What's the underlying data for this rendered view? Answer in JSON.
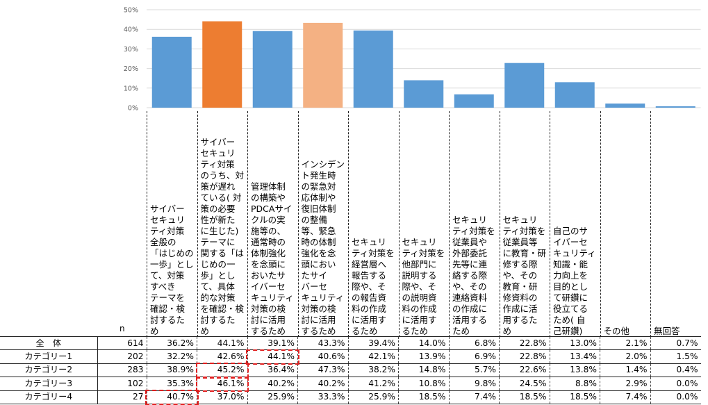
{
  "chart_data": {
    "type": "bar",
    "ylim": [
      0,
      50
    ],
    "ytick_labels": [
      "0%",
      "10%",
      "20%",
      "30%",
      "40%",
      "50%"
    ],
    "n_header": "n",
    "bar_colors": [
      "#5b9bd5",
      "#ed7d31",
      "#5b9bd5",
      "#f4b183",
      "#5b9bd5",
      "#5b9bd5",
      "#5b9bd5",
      "#5b9bd5",
      "#5b9bd5",
      "#5b9bd5",
      "#5b9bd5"
    ],
    "categories": [
      "サイバー\nセキュリ\nティ対策\n全般の\n「はじめの\n一歩」とし\nて、対策\nすべき\nテーマを\n確認・検\n討するた\nめ",
      "サイバー\nセキュリ\nティ対策\nのうち、対\n策が遅れ\nている( 対\n策の必要\n性が新た\nに生じた)\nテーマに\n関する「は\nじめの一\n歩」とし\nて、具体\n的な対策\nを確認・検\n討するた\nめ",
      "管理体制\nの構築や\nPDCAサイ\nクルの実\n施等の、\n通常時の\n体制強化\nを念頭に\nおいたサ\nイバーセ\nキュリティ\n対策の検\n討に活用\nするため",
      "インシデン\nト発生時\nの緊急対\n応体制や\n復旧体制\nの整備\n等、緊急\n時の体制\n強化を念\n頭におい\nたサイ\nバーセ\nキュリティ\n対策の検\n討に活用\nするため",
      "セキュリ\nティ対策を\n経営層へ\n報告する\n際や、そ\nの報告資\n料の作成\nに活用す\nるため",
      "セキュリ\nティ対策を\n他部門に\n説明する\n際や、そ\nの説明資\n料の作成\nに活用す\nるため",
      "セキュリ\nティ対策を\n従業員や\n外部委託\n先等に連\n絡する際\nや、その\n連絡資料\nの作成に\n活用する\nため",
      "セキュリ\nティ対策を\n従業員等\nに教育・研\n修する際\nや、その\n教育・研\n修資料の\n作成に活\n用するた\nめ",
      "自己のサ\nイバーセ\nキュリティ\n知識・能\n力向上を\n目的とし\nて研鑽に\n役立てる\nため( 自\n己研鑽)",
      "その他",
      "無回答"
    ],
    "values": [
      36.2,
      44.1,
      39.1,
      43.3,
      39.4,
      14.0,
      6.8,
      22.8,
      13.0,
      2.1,
      0.7
    ],
    "table": {
      "rows": [
        {
          "label": "全　体",
          "n": "614",
          "values": [
            "36.2%",
            "44.1%",
            "39.1%",
            "43.3%",
            "39.4%",
            "14.0%",
            "6.8%",
            "22.8%",
            "13.0%",
            "2.1%",
            "0.7%"
          ]
        },
        {
          "label": "カテゴリー1",
          "n": "202",
          "values": [
            "32.2%",
            "42.6%",
            "44.1%",
            "40.6%",
            "42.1%",
            "13.9%",
            "6.9%",
            "22.8%",
            "13.4%",
            "2.0%",
            "1.5%"
          ]
        },
        {
          "label": "カテゴリー2",
          "n": "283",
          "values": [
            "38.9%",
            "45.2%",
            "36.4%",
            "47.3%",
            "38.2%",
            "14.8%",
            "5.7%",
            "22.6%",
            "13.8%",
            "1.4%",
            "0.4%"
          ]
        },
        {
          "label": "カテゴリー3",
          "n": "102",
          "values": [
            "35.3%",
            "46.1%",
            "40.2%",
            "40.2%",
            "41.2%",
            "10.8%",
            "9.8%",
            "24.5%",
            "8.8%",
            "2.9%",
            "0.0%"
          ]
        },
        {
          "label": "カテゴリー4",
          "n": "27",
          "values": [
            "40.7%",
            "37.0%",
            "25.9%",
            "33.3%",
            "25.9%",
            "18.5%",
            "7.4%",
            "18.5%",
            "18.5%",
            "7.4%",
            "0.0%"
          ]
        }
      ],
      "highlighted_cells": [
        {
          "row": 1,
          "col": 2
        },
        {
          "row": 2,
          "col": 1
        },
        {
          "row": 3,
          "col": 1
        },
        {
          "row": 4,
          "col": 0
        }
      ],
      "highlight_color": "#e02020"
    }
  }
}
